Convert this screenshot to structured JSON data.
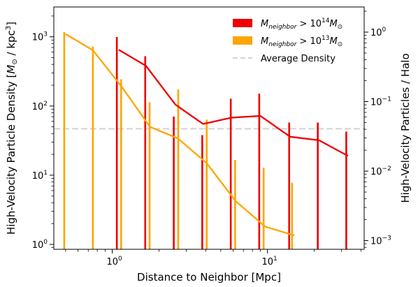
{
  "chart_data": {
    "type": "line",
    "xlabel": "Distance to Neighbor [Mpc]",
    "ylabel": "High-Velocity Particle Density [M_sun / kpc^3]",
    "ylabel_parts": {
      "prefix": "High-Velocity Particle Density [",
      "sym": "M",
      "sub": "⊙",
      "mid": " / kpc",
      "sup": "3",
      "end": "]"
    },
    "y2label": "High-Velocity Particles / Halo",
    "xscale": "log",
    "yscale": "log",
    "y2scale": "log",
    "xlim": [
      0.42,
      42
    ],
    "ylim": [
      0.85,
      2700
    ],
    "y2lim": [
      0.00075,
      2.3
    ],
    "x_ticks": [
      {
        "value": 1,
        "base": "10",
        "exp": "0"
      },
      {
        "value": 10,
        "base": "10",
        "exp": "1"
      }
    ],
    "y_ticks": [
      {
        "value": 1,
        "base": "10",
        "exp": "0"
      },
      {
        "value": 10,
        "base": "10",
        "exp": "1"
      },
      {
        "value": 100,
        "base": "10",
        "exp": "2"
      },
      {
        "value": 1000,
        "base": "10",
        "exp": "3"
      }
    ],
    "y2_ticks": [
      {
        "value": 0.001,
        "base": "10",
        "exp": "−3"
      },
      {
        "value": 0.01,
        "base": "10",
        "exp": "−2"
      },
      {
        "value": 0.1,
        "base": "10",
        "exp": "−1"
      },
      {
        "value": 1,
        "base": "10",
        "exp": "0"
      }
    ],
    "grid": false,
    "legend_position": "top-right",
    "legend": [
      {
        "text_pre": "M",
        "text_sub": "neighbor",
        "text_mid": " > 10",
        "text_sup": "14",
        "text_post": "M",
        "text_post_sub": "⊙",
        "color": "#ee0000",
        "kind": "patch"
      },
      {
        "text_pre": "M",
        "text_sub": "neighbor",
        "text_mid": " > 10",
        "text_sup": "13",
        "text_post": "M",
        "text_post_sub": "⊙",
        "color": "#ffa500",
        "kind": "patch"
      },
      {
        "plain": "Average Density",
        "color": "#d3d3d3",
        "kind": "dashed-line"
      }
    ],
    "reference_lines": [
      {
        "name": "Average Density",
        "y": 47,
        "color": "#d3d3d3"
      }
    ],
    "series": [
      {
        "name": "M_neighbor > 10^14 M_sun",
        "color": "#ee0000",
        "axis": "left",
        "x": [
          1.1,
          1.65,
          2.55,
          3.85,
          5.9,
          9.0,
          14.0,
          21.5,
          33.0
        ],
        "y": [
          650,
          380,
          105,
          55,
          68,
          72,
          36,
          32,
          19
        ]
      },
      {
        "name": "M_neighbor > 10^13 M_sun",
        "color": "#ffa500",
        "axis": "left",
        "x": [
          0.5,
          0.75,
          1.15,
          1.75,
          2.65,
          4.05,
          6.25,
          9.7,
          14.9
        ],
        "y": [
          1100,
          640,
          190,
          50,
          34,
          15,
          4.2,
          1.8,
          1.35
        ]
      }
    ],
    "bars": [
      {
        "series": "M_neighbor > 10^14 M_sun",
        "color": "#ee0000",
        "axis": "right",
        "x": [
          1.07,
          1.63,
          2.49,
          3.8,
          5.8,
          8.85,
          13.8,
          21.1,
          32.2
        ],
        "value": [
          0.85,
          0.45,
          0.061,
          0.033,
          0.11,
          0.13,
          0.05,
          0.05,
          0.037
        ]
      },
      {
        "series": "M_neighbor > 10^13 M_sun",
        "color": "#ffa500",
        "axis": "right",
        "x": [
          0.49,
          0.75,
          1.14,
          1.74,
          2.66,
          4.06,
          6.19,
          9.45,
          14.4
        ],
        "value": [
          1.0,
          0.62,
          0.21,
          0.098,
          0.15,
          0.055,
          0.0145,
          0.0112,
          0.0068
        ]
      }
    ]
  }
}
